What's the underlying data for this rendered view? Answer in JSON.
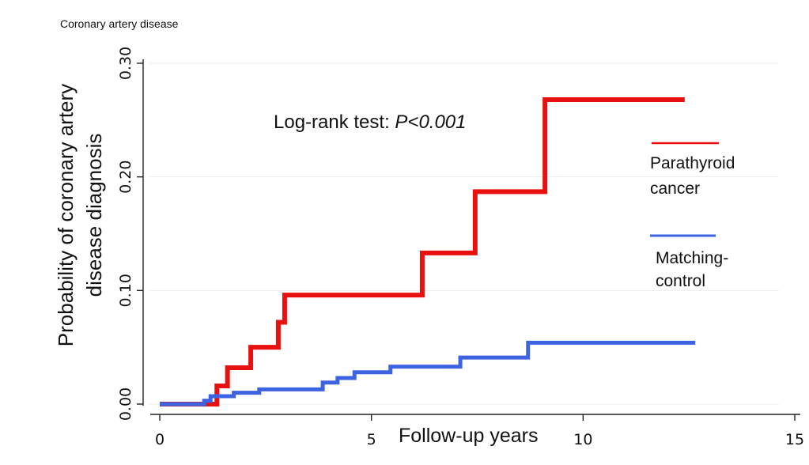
{
  "chart_data": {
    "type": "line",
    "step": true,
    "title": "Coronary artery disease",
    "xlabel": "Follow-up years",
    "ylabel_line1": "Probability of  coronary artery",
    "ylabel_line2": "disease diagnosis",
    "xlim": [
      0,
      15
    ],
    "ylim": [
      0,
      0.3
    ],
    "x_ticks": [
      0,
      5,
      10,
      15
    ],
    "y_ticks": [
      0.0,
      0.1,
      0.2,
      0.3
    ],
    "x_tick_labels": [
      "0",
      "5",
      "10",
      "15"
    ],
    "y_tick_labels": [
      "0.00",
      "0.10",
      "0.20",
      "0.30"
    ],
    "grid": true,
    "annotation": {
      "prefix": "Log-rank test: ",
      "emphasis": "P<0.001"
    },
    "series": [
      {
        "name": "Parathyroid cancer",
        "legend_line1": "Parathyroid",
        "legend_line2": "cancer",
        "color": "#e8110f",
        "x": [
          0,
          1.35,
          1.6,
          2.15,
          2.8,
          2.95,
          6.2,
          7.45,
          9.1,
          12.4
        ],
        "y": [
          0,
          0.016,
          0.032,
          0.05,
          0.072,
          0.096,
          0.133,
          0.187,
          0.268,
          0.268
        ]
      },
      {
        "name": "Matching-control",
        "legend_line1": "Matching-",
        "legend_line2": "control",
        "color": "#3e63e0",
        "x": [
          0,
          1.05,
          1.2,
          1.75,
          2.35,
          3.85,
          4.2,
          4.6,
          5.45,
          7.1,
          8.7,
          12.65
        ],
        "y": [
          0,
          0.003,
          0.007,
          0.01,
          0.013,
          0.019,
          0.023,
          0.028,
          0.033,
          0.041,
          0.054,
          0.054
        ]
      }
    ]
  }
}
